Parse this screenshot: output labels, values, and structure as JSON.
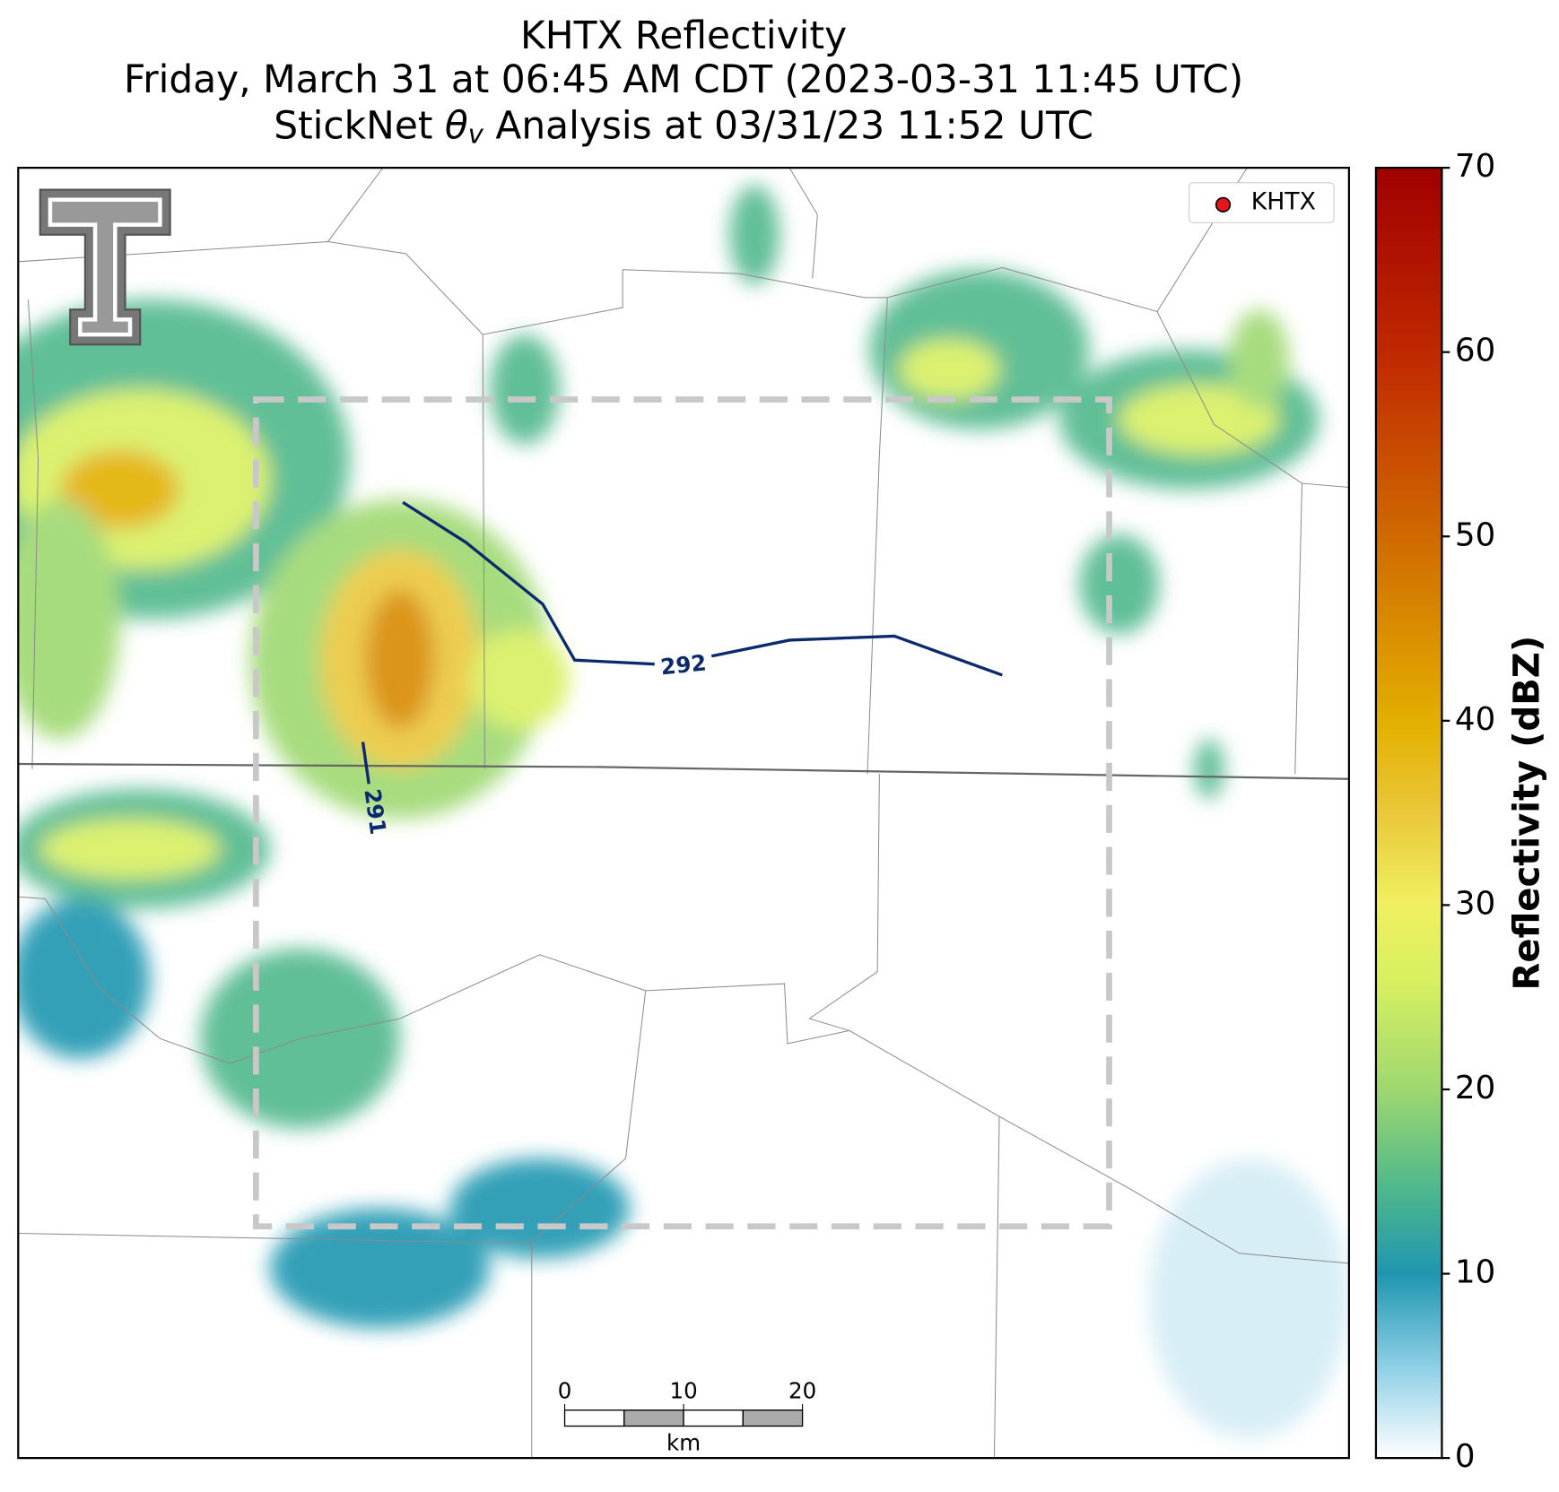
{
  "title": {
    "line1": "KHTX Reflectivity",
    "line2": "Friday, March 31 at 06:45 AM CDT (2023-03-31 11:45 UTC)",
    "line3": {
      "pre": "StickNet ",
      "theta": "θ",
      "sub": "v",
      "post": " Analysis at 03/31/23 11:52 UTC"
    }
  },
  "colorbar": {
    "label": "Reflectivity (dBZ)",
    "lim": [
      0,
      70
    ],
    "ticks": [
      0,
      10,
      20,
      30,
      40,
      50,
      60,
      70
    ]
  },
  "legend": {
    "label": "KHTX",
    "color": "#e8141c"
  },
  "scale_bar": {
    "ticks": [
      0,
      10,
      20
    ],
    "unit": "km"
  },
  "contours": [
    {
      "value": 292
    },
    {
      "value": 291
    }
  ]
}
